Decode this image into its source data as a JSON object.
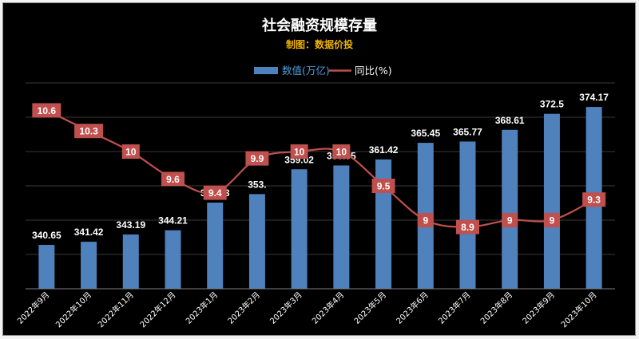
{
  "colors": {
    "background": "#000000",
    "bar": "#4f81bd",
    "line": "#c0504d",
    "label_box": "#c0504d",
    "grid": "#3a3a3a",
    "title": "#ffffff",
    "subtitle": "#f0b400",
    "legend_bar_text": "#4f9fe0",
    "legend_line_text": "#ffffff"
  },
  "chart_data": {
    "type": "bar",
    "title": "社会融资规模存量",
    "subtitle": "制图：数据价投",
    "categories": [
      "2022年9月",
      "2022年10月",
      "2022年11月",
      "2022年12月",
      "2023年1月",
      "2023年2月",
      "2023年3月",
      "2023年4月",
      "2023年5月",
      "2023年6月",
      "2023年7月",
      "2023年8月",
      "2023年9月",
      "2023年10月"
    ],
    "series": [
      {
        "name": "数值(万亿)",
        "type": "bar",
        "axis": "left",
        "values": [
          340.65,
          341.42,
          343.19,
          344.21,
          350.93,
          353.0,
          359.02,
          359.95,
          361.42,
          365.45,
          365.77,
          368.61,
          372.5,
          374.17
        ],
        "labels": [
          "340.65",
          "341.42",
          "343.19",
          "344.21",
          "350.93",
          "353.",
          "359.02",
          "359.95",
          "361.42",
          "365.45",
          "365.77",
          "368.61",
          "372.5",
          "374.17"
        ]
      },
      {
        "name": "同比(%)",
        "type": "line",
        "axis": "right",
        "values": [
          10.6,
          10.3,
          10,
          9.6,
          9.4,
          9.9,
          10,
          10,
          9.5,
          9,
          8.9,
          9,
          9,
          9.3
        ],
        "labels": [
          "10.6",
          "10.3",
          "10",
          "9.6",
          "9.4",
          "9.9",
          "10",
          "10",
          "9.5",
          "9",
          "8.9",
          "9",
          "9",
          "9.3"
        ]
      }
    ],
    "ylim_left": [
      330,
      380
    ],
    "ylim_right": [
      8,
      11
    ],
    "grid": true,
    "legend_position": "top-center",
    "axis_labels_visible": false
  }
}
